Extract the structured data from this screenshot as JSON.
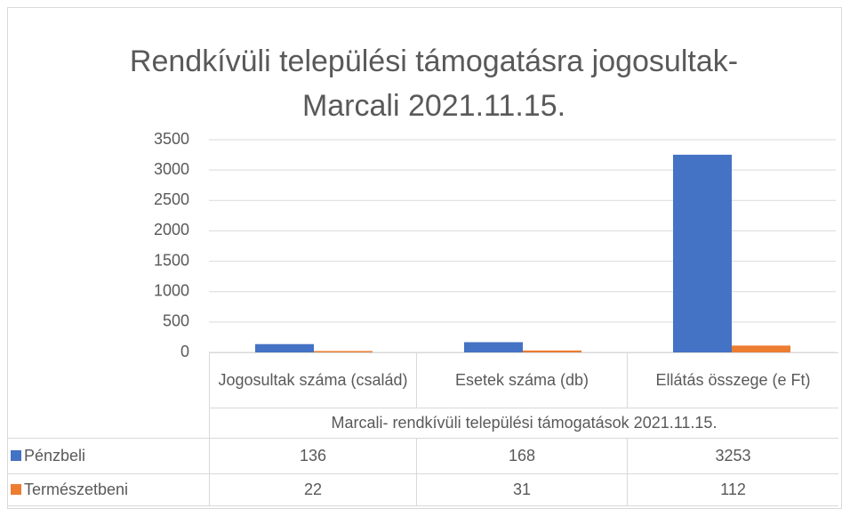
{
  "chart_data": {
    "type": "bar",
    "title": "Rendkívüli települési támogatásra jogosultak-Marcali 2021.11.15.",
    "x_axis_label": "Marcali- rendkívüli települési támogatások 2021.11.15.",
    "categories": [
      "Jogosultak száma (család)",
      "Esetek száma (db)",
      "Ellátás összege (e Ft)"
    ],
    "series": [
      {
        "name": "Pénzbeli",
        "color": "#4472c4",
        "values": [
          136,
          168,
          3253
        ]
      },
      {
        "name": "Természetbeni",
        "color": "#ed7d31",
        "values": [
          22,
          31,
          112
        ]
      }
    ],
    "ylim": [
      0,
      3500
    ],
    "yticks": [
      0,
      500,
      1000,
      1500,
      2000,
      2500,
      3000,
      3500
    ],
    "grid": true
  }
}
